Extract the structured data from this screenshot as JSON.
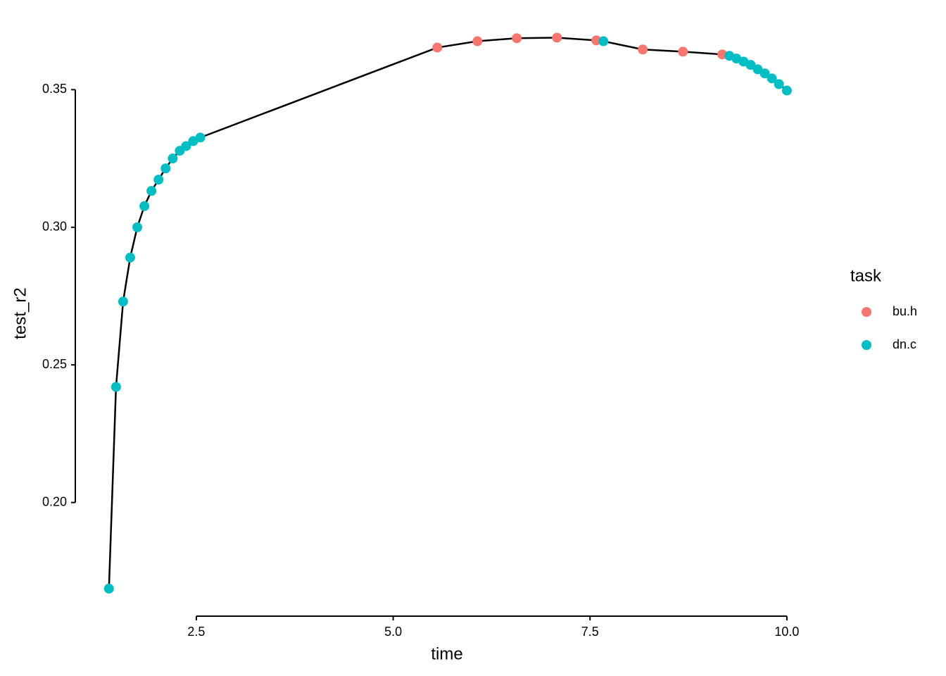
{
  "chart_data": {
    "type": "scatter",
    "x_label": "time",
    "y_label": "test_r2",
    "x": [
      1.39,
      1.48,
      1.57,
      1.66,
      1.75,
      1.84,
      1.93,
      2.02,
      2.11,
      2.2,
      2.29,
      2.37,
      2.46,
      2.55,
      5.56,
      6.07,
      6.57,
      7.08,
      7.58,
      7.67,
      8.17,
      8.68,
      9.18,
      9.27,
      9.36,
      9.45,
      9.54,
      9.63,
      9.72,
      9.81,
      9.9,
      10.0
    ],
    "values": [
      0.1687,
      0.242,
      0.273,
      0.289,
      0.3,
      0.3077,
      0.3132,
      0.3173,
      0.3214,
      0.325,
      0.3278,
      0.3295,
      0.3313,
      0.3326,
      0.3653,
      0.3676,
      0.3687,
      0.3689,
      0.3679,
      0.3676,
      0.3646,
      0.3638,
      0.3628,
      0.3623,
      0.3613,
      0.3602,
      0.359,
      0.3574,
      0.3559,
      0.3541,
      0.352,
      0.3497
    ],
    "groups": [
      "dn.c",
      "dn.c",
      "dn.c",
      "dn.c",
      "dn.c",
      "dn.c",
      "dn.c",
      "dn.c",
      "dn.c",
      "dn.c",
      "dn.c",
      "dn.c",
      "dn.c",
      "dn.c",
      "bu.h",
      "bu.h",
      "bu.h",
      "bu.h",
      "bu.h",
      "dn.c",
      "bu.h",
      "bu.h",
      "bu.h",
      "dn.c",
      "dn.c",
      "dn.c",
      "dn.c",
      "dn.c",
      "dn.c",
      "dn.c",
      "dn.c",
      "dn.c"
    ],
    "line_color": "#000000",
    "legend": {
      "title": "task",
      "entries": [
        {
          "name": "bu.h",
          "color": "#F8766D"
        },
        {
          "name": "dn.c",
          "color": "#00BFC4"
        }
      ]
    },
    "xlim": [
      0.963,
      10.43
    ],
    "ylim": [
      0.1587,
      0.379
    ],
    "xticks": [
      2.5,
      {
        "value": 5,
        "label": "5.0"
      },
      7.5,
      {
        "value": 10,
        "label": "10.0"
      }
    ],
    "yticks": [
      {
        "value": 0.2,
        "label": "0.20"
      },
      0.25,
      {
        "value": 0.3,
        "label": "0.30"
      },
      0.35
    ],
    "grid": false
  }
}
